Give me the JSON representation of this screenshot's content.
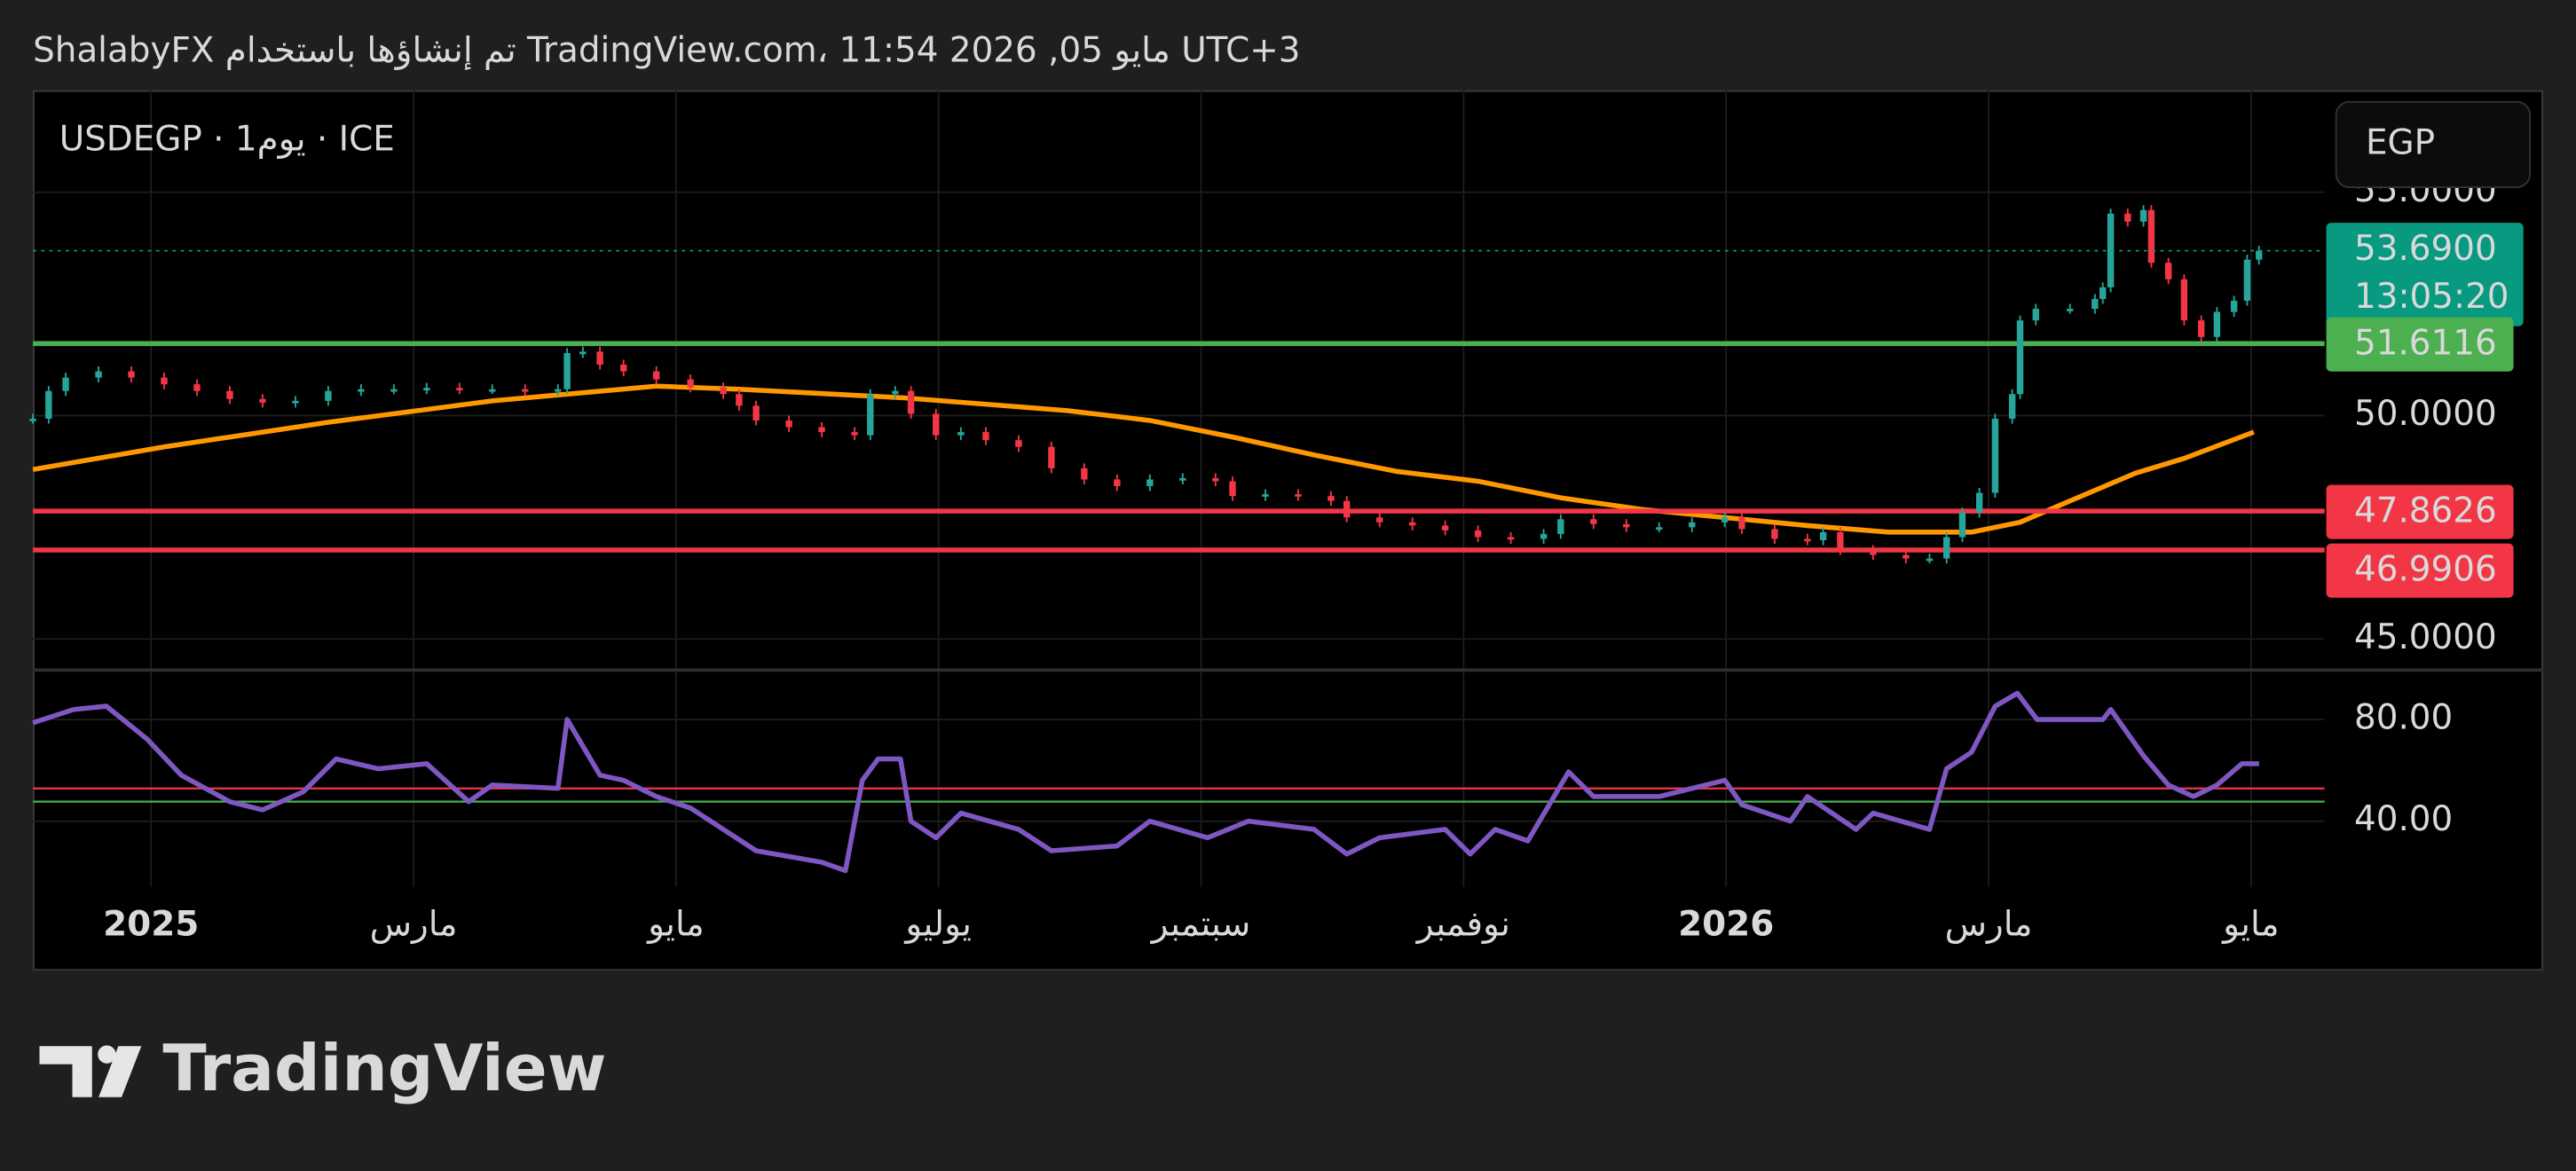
{
  "header": {
    "text": "ShalabyFX تم إنشاؤها باستخدام TradingView.com، مايو 05, 2026 11:54 UTC+3"
  },
  "footer": {
    "logo": "TradingView"
  },
  "chart_data": [
    {
      "type": "candlestick",
      "title": "USDEGP · 1يوم · ICE",
      "currency": "EGP",
      "up_color": "#26a69a",
      "down_color": "#f23645",
      "xlim": [
        -0.9,
        16.56
      ],
      "ylim": [
        44.34,
        57.28
      ],
      "yticks": [
        {
          "value": 45,
          "label": "45.0000"
        },
        {
          "value": 50,
          "label": "50.0000"
        },
        {
          "value": 55,
          "label": "55.0000"
        }
      ],
      "x": [
        -0.9,
        -0.78,
        -0.65,
        -0.4,
        -0.15,
        0.1,
        0.35,
        0.6,
        0.85,
        1.1,
        1.35,
        1.6,
        1.85,
        2.1,
        2.35,
        2.6,
        2.85,
        3.1,
        3.17,
        3.29,
        3.42,
        3.6,
        3.85,
        4.11,
        4.36,
        4.48,
        4.61,
        4.86,
        5.11,
        5.36,
        5.48,
        5.67,
        5.79,
        5.98,
        6.17,
        6.36,
        6.61,
        6.86,
        7.11,
        7.36,
        7.61,
        7.86,
        8.11,
        8.24,
        8.49,
        8.74,
        8.99,
        9.11,
        9.36,
        9.61,
        9.86,
        10.11,
        10.36,
        10.61,
        10.74,
        10.99,
        11.24,
        11.49,
        11.74,
        11.99,
        12.12,
        12.37,
        12.62,
        12.74,
        12.87,
        13.12,
        13.37,
        13.55,
        13.68,
        13.8,
        13.93,
        14.05,
        14.18,
        14.24,
        14.36,
        14.62,
        14.81,
        14.87,
        14.93,
        15.06,
        15.18,
        15.24,
        15.37,
        15.49,
        15.62,
        15.74,
        15.87,
        15.97,
        16.06
      ],
      "values": [
        49.93,
        50.55,
        50.85,
        50.99,
        50.85,
        50.7,
        50.55,
        50.37,
        50.29,
        50.33,
        50.55,
        50.59,
        50.59,
        50.62,
        50.59,
        50.59,
        50.55,
        50.59,
        51.4,
        51.43,
        51.14,
        50.99,
        50.81,
        50.63,
        50.48,
        50.22,
        49.89,
        49.74,
        49.63,
        49.56,
        50.48,
        50.55,
        50.04,
        49.56,
        49.63,
        49.45,
        49.3,
        48.82,
        48.57,
        48.42,
        48.57,
        48.6,
        48.53,
        48.2,
        48.24,
        48.2,
        48.09,
        47.72,
        47.61,
        47.54,
        47.43,
        47.28,
        47.24,
        47.35,
        47.68,
        47.57,
        47.5,
        47.5,
        47.61,
        47.72,
        47.46,
        47.24,
        47.21,
        47.39,
        46.99,
        46.88,
        46.8,
        46.8,
        47.28,
        47.83,
        48.27,
        49.93,
        50.48,
        52.13,
        52.39,
        52.39,
        52.61,
        52.87,
        54.52,
        54.34,
        54.6,
        53.42,
        53.05,
        52.13,
        51.76,
        52.32,
        52.57,
        53.49,
        53.69
      ],
      "ma_color": "#ff9800",
      "ma_x": [
        -0.9,
        0.1,
        1.35,
        2.6,
        3.85,
        4.48,
        5.73,
        6.98,
        7.61,
        8.24,
        8.86,
        9.49,
        10.11,
        10.74,
        11.36,
        11.99,
        12.62,
        13.24,
        13.87,
        14.24,
        14.62,
        15.12,
        15.49,
        16.02
      ],
      "ma_values": [
        48.79,
        49.3,
        49.85,
        50.33,
        50.66,
        50.59,
        50.4,
        50.11,
        49.89,
        49.52,
        49.12,
        48.75,
        48.53,
        48.16,
        47.9,
        47.72,
        47.54,
        47.39,
        47.39,
        47.61,
        48.09,
        48.71,
        49.04,
        49.63
      ],
      "last_price": {
        "value": 53.69,
        "label": "53.6900",
        "countdown": "13:05:20",
        "color": "#089981"
      },
      "levels": [
        {
          "value": 51.6116,
          "label": "51.6116",
          "color": "#4caf50"
        },
        {
          "value": 47.8626,
          "label": "47.8626",
          "color": "#f23645"
        },
        {
          "value": 46.9906,
          "label": "46.9906",
          "color": "#f23645"
        }
      ]
    },
    {
      "type": "line",
      "color": "#7e57c2",
      "xlim": [
        -0.9,
        16.56
      ],
      "ylim": [
        14.2,
        99.4
      ],
      "yticks": [
        {
          "value": 80,
          "label": "80.00"
        },
        {
          "value": 40,
          "label": "40.00"
        }
      ],
      "xticks": [
        {
          "value": 0,
          "label": "2025"
        },
        {
          "value": 2,
          "label": "مارس"
        },
        {
          "value": 4,
          "label": "مايو"
        },
        {
          "value": 6,
          "label": "يوليو"
        },
        {
          "value": 8,
          "label": "سبتمبر"
        },
        {
          "value": 10,
          "label": "نوفمبر"
        },
        {
          "value": 12,
          "label": "2026"
        },
        {
          "value": 14,
          "label": "مارس"
        },
        {
          "value": 16,
          "label": "مايو"
        }
      ],
      "levels": [
        {
          "value": 52.9,
          "color": "#f23645"
        },
        {
          "value": 47.7,
          "color": "#4caf50"
        }
      ],
      "x": [
        -0.9,
        -0.59,
        -0.34,
        -0.03,
        0.23,
        0.6,
        0.85,
        1.16,
        1.41,
        1.73,
        2.1,
        2.42,
        2.6,
        3.1,
        3.17,
        3.42,
        3.6,
        3.85,
        4.11,
        4.36,
        4.61,
        5.11,
        5.29,
        5.42,
        5.54,
        5.71,
        5.79,
        5.98,
        6.17,
        6.61,
        6.86,
        7.36,
        7.61,
        8.05,
        8.36,
        8.86,
        9.11,
        9.36,
        9.86,
        10.05,
        10.24,
        10.49,
        10.8,
        10.99,
        11.49,
        11.99,
        12.12,
        12.49,
        12.62,
        12.99,
        13.12,
        13.55,
        13.68,
        13.87,
        14.05,
        14.22,
        14.37,
        14.87,
        14.93,
        15.18,
        15.37,
        15.56,
        15.74,
        15.93,
        16.06
      ],
      "values": [
        78.7,
        83.9,
        85.2,
        72.3,
        58.1,
        47.7,
        44.5,
        51.6,
        64.5,
        60.6,
        62.6,
        47.7,
        54.2,
        52.9,
        80.0,
        58.1,
        56.1,
        49.7,
        45.2,
        36.8,
        28.4,
        23.9,
        20.6,
        56.1,
        64.5,
        64.5,
        40.0,
        33.5,
        43.2,
        36.8,
        28.4,
        30.3,
        40.0,
        33.5,
        40.0,
        36.8,
        27.1,
        33.5,
        36.8,
        27.1,
        36.8,
        32.3,
        59.4,
        49.7,
        49.7,
        56.1,
        46.5,
        40.0,
        49.7,
        36.8,
        43.2,
        36.8,
        60.6,
        67.1,
        85.2,
        90.3,
        80.0,
        80.0,
        83.9,
        65.8,
        54.2,
        49.7,
        54.2,
        62.6,
        62.6
      ]
    }
  ]
}
